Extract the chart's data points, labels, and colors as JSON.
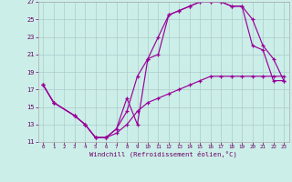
{
  "xlabel": "Windchill (Refroidissement éolien,°C)",
  "bg_color": "#cceee8",
  "grid_color": "#aacccc",
  "line_color": "#990099",
  "xlim": [
    -0.5,
    23.5
  ],
  "ylim": [
    11,
    27
  ],
  "xticks": [
    0,
    1,
    2,
    3,
    4,
    5,
    6,
    7,
    8,
    9,
    10,
    11,
    12,
    13,
    14,
    15,
    16,
    17,
    18,
    19,
    20,
    21,
    22,
    23
  ],
  "yticks": [
    11,
    13,
    15,
    17,
    19,
    21,
    23,
    25,
    27
  ],
  "curve1_x": [
    0,
    1,
    3,
    4,
    5,
    6,
    7,
    8,
    9,
    10,
    11,
    12,
    13,
    14,
    15,
    16,
    17,
    18,
    19,
    20,
    21,
    22,
    23
  ],
  "curve1_y": [
    17.5,
    15.5,
    14.0,
    13.0,
    11.5,
    11.5,
    12.5,
    16.0,
    13.0,
    20.5,
    23.0,
    25.5,
    26.0,
    26.5,
    27.0,
    27.0,
    27.0,
    26.5,
    26.5,
    22.0,
    21.5,
    18.0,
    18.0
  ],
  "curve2_x": [
    0,
    1,
    3,
    4,
    5,
    6,
    7,
    8,
    9,
    10,
    11,
    12,
    13,
    14,
    15,
    16,
    17,
    18,
    19,
    20,
    21,
    22,
    23
  ],
  "curve2_y": [
    17.5,
    15.5,
    14.0,
    13.0,
    11.5,
    11.5,
    12.5,
    14.5,
    18.5,
    20.5,
    21.0,
    25.5,
    26.0,
    26.5,
    27.0,
    27.0,
    27.0,
    26.5,
    26.5,
    25.0,
    22.0,
    20.5,
    18.0
  ],
  "curve3_x": [
    0,
    1,
    3,
    4,
    5,
    6,
    7,
    8,
    9,
    10,
    11,
    12,
    13,
    14,
    15,
    16,
    17,
    18,
    19,
    20,
    21,
    22,
    23
  ],
  "curve3_y": [
    17.5,
    15.5,
    14.0,
    13.0,
    11.5,
    11.5,
    12.0,
    13.0,
    14.5,
    15.5,
    16.0,
    16.5,
    17.0,
    17.5,
    18.0,
    18.5,
    18.5,
    18.5,
    18.5,
    18.5,
    18.5,
    18.5,
    18.5
  ]
}
